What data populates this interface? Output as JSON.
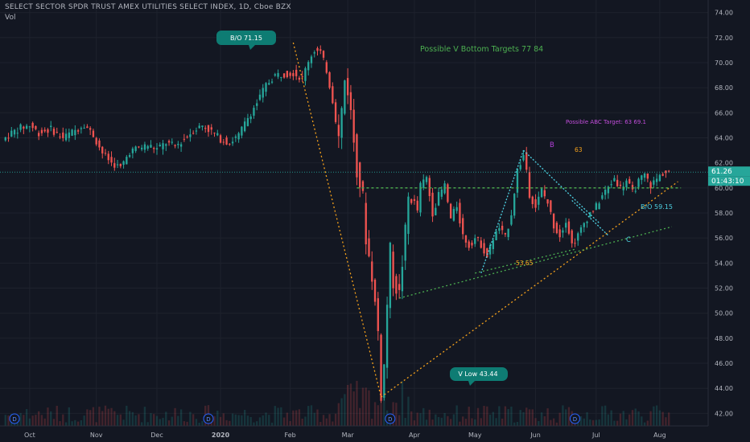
{
  "header": {
    "title": "SELECT SECTOR SPDR TRUST AMEX UTILITIES SELECT INDEX, 1D, Cboe BZX",
    "vol_label": "Vol"
  },
  "colors": {
    "background": "#131722",
    "grid": "#1e222d",
    "up": "#26a69a",
    "down": "#ef5350",
    "orange": "#f7a21b",
    "green": "#4caf50",
    "cyan": "#4dd0e1",
    "purple": "#b43fdb",
    "teal_label": "#0e7c73",
    "text": "#b2b5be"
  },
  "chart_data": {
    "type": "candlestick",
    "y_range": [
      41,
      75
    ],
    "y_ticks": [
      "74.00",
      "72.00",
      "70.00",
      "68.00",
      "66.00",
      "64.00",
      "62.00",
      "60.00",
      "58.00",
      "56.00",
      "54.00",
      "52.00",
      "50.00",
      "48.00",
      "46.00",
      "44.00",
      "42.00"
    ],
    "y_tick_values": [
      74,
      72,
      70,
      68,
      66,
      64,
      62,
      60,
      58,
      56,
      54,
      52,
      50,
      48,
      46,
      44,
      42
    ],
    "x_labels": [
      "Oct",
      "Nov",
      "Dec",
      "2020",
      "Feb",
      "Mar",
      "Apr",
      "May",
      "Jun",
      "Jul",
      "Aug"
    ],
    "x_label_days": [
      9,
      31,
      51,
      72,
      95,
      114,
      136,
      156,
      176,
      196,
      217
    ],
    "day_range": [
      0,
      225
    ],
    "price_label": "61.26",
    "price_value": 61.26,
    "countdown_label": "01:43:10",
    "dividend_marker": "D",
    "dividend_days": [
      4,
      68,
      128,
      189
    ],
    "anchors": [
      [
        0,
        63.8
      ],
      [
        3,
        64.4
      ],
      [
        6,
        64.8
      ],
      [
        9,
        65.0
      ],
      [
        12,
        64.4
      ],
      [
        16,
        64.7
      ],
      [
        20,
        64.0
      ],
      [
        24,
        64.6
      ],
      [
        27,
        65.1
      ],
      [
        30,
        64.2
      ],
      [
        33,
        62.8
      ],
      [
        36,
        62.0
      ],
      [
        39,
        61.6
      ],
      [
        42,
        62.9
      ],
      [
        45,
        63.2
      ],
      [
        48,
        63.4
      ],
      [
        51,
        63.1
      ],
      [
        54,
        63.6
      ],
      [
        57,
        63.3
      ],
      [
        60,
        63.9
      ],
      [
        63,
        64.6
      ],
      [
        66,
        65.0
      ],
      [
        69,
        64.5
      ],
      [
        72,
        63.9
      ],
      [
        75,
        63.6
      ],
      [
        78,
        64.2
      ],
      [
        81,
        65.6
      ],
      [
        84,
        66.8
      ],
      [
        87,
        68.2
      ],
      [
        90,
        69.0
      ],
      [
        93,
        69.1
      ],
      [
        96,
        69.2
      ],
      [
        99,
        68.7
      ],
      [
        101,
        70.2
      ],
      [
        103,
        71.0
      ],
      [
        105,
        70.8
      ],
      [
        107,
        69.4
      ],
      [
        109,
        67.0
      ],
      [
        111,
        64.0
      ],
      [
        112,
        66.2
      ],
      [
        113,
        68.6
      ],
      [
        114,
        67.8
      ],
      [
        115,
        66.0
      ],
      [
        117,
        61.5
      ],
      [
        119,
        59.2
      ],
      [
        120,
        56.0
      ],
      [
        122,
        53.0
      ],
      [
        124,
        48.5
      ],
      [
        125,
        43.5
      ],
      [
        126,
        45.8
      ],
      [
        127,
        50.8
      ],
      [
        128,
        55.0
      ],
      [
        129,
        52.5
      ],
      [
        131,
        51.5
      ],
      [
        133,
        56.5
      ],
      [
        134,
        59.2
      ],
      [
        136,
        58.8
      ],
      [
        137,
        58.2
      ],
      [
        138,
        60.2
      ],
      [
        140,
        60.8
      ],
      [
        142,
        58.0
      ],
      [
        144,
        59.4
      ],
      [
        146,
        60.2
      ],
      [
        148,
        57.5
      ],
      [
        150,
        58.6
      ],
      [
        152,
        56.2
      ],
      [
        154,
        55.4
      ],
      [
        156,
        56.0
      ],
      [
        158,
        55.5
      ],
      [
        160,
        54.5
      ],
      [
        162,
        56.0
      ],
      [
        164,
        56.8
      ],
      [
        166,
        56.0
      ],
      [
        168,
        58.0
      ],
      [
        170,
        61.4
      ],
      [
        172,
        62.6
      ],
      [
        173,
        61.5
      ],
      [
        174,
        59.5
      ],
      [
        176,
        58.5
      ],
      [
        178,
        59.8
      ],
      [
        180,
        58.8
      ],
      [
        182,
        57.0
      ],
      [
        184,
        56.2
      ],
      [
        186,
        57.5
      ],
      [
        188,
        55.5
      ],
      [
        190,
        56.2
      ],
      [
        192,
        57.2
      ],
      [
        194,
        58.0
      ],
      [
        196,
        58.5
      ],
      [
        198,
        59.4
      ],
      [
        200,
        60.0
      ],
      [
        202,
        60.8
      ],
      [
        204,
        60.0
      ],
      [
        206,
        60.6
      ],
      [
        208,
        59.6
      ],
      [
        210,
        60.5
      ],
      [
        212,
        61.0
      ],
      [
        214,
        60.2
      ],
      [
        216,
        60.7
      ],
      [
        218,
        61.2
      ],
      [
        220,
        61.26
      ]
    ],
    "volume_note": "low volume bars along bottom"
  },
  "annotations": {
    "bo_top": "B/O 71.15",
    "v_low": "V Low  43.44",
    "v_bottom_targets": "Possible V Bottom Targets 77  84",
    "abc_target": "Possible ABC Target: 63  69.1",
    "bo_mid": "B/O 59.15",
    "label_63": "63",
    "label_5365": "53.65",
    "label_b": "B",
    "label_c": "C"
  }
}
